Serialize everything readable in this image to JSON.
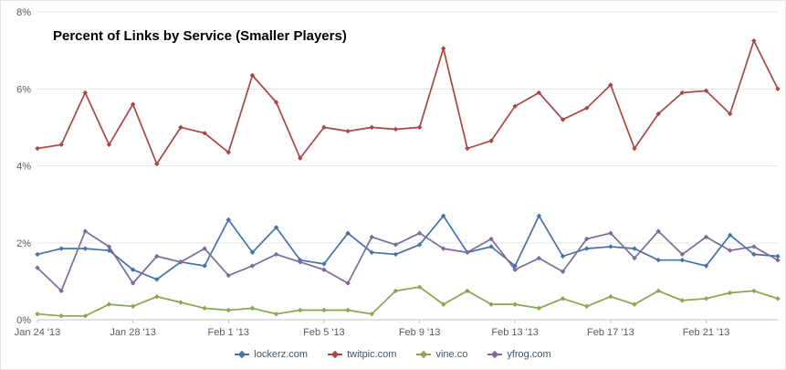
{
  "chart_data": {
    "type": "line",
    "title": "Percent of Links by Service (Smaller Players)",
    "xlabel": "",
    "ylabel": "",
    "ylim": [
      0,
      8
    ],
    "y_ticks": [
      0,
      2,
      4,
      6,
      8
    ],
    "y_tick_labels": [
      "0%",
      "2%",
      "4%",
      "6%",
      "8%"
    ],
    "grid": true,
    "legend_position": "bottom",
    "categories": [
      "Jan 24 '13",
      "Jan 25 '13",
      "Jan 26 '13",
      "Jan 27 '13",
      "Jan 28 '13",
      "Jan 29 '13",
      "Jan 30 '13",
      "Jan 31 '13",
      "Feb 1 '13",
      "Feb 2 '13",
      "Feb 3 '13",
      "Feb 4 '13",
      "Feb 5 '13",
      "Feb 6 '13",
      "Feb 7 '13",
      "Feb 8 '13",
      "Feb 9 '13",
      "Feb 10 '13",
      "Feb 11 '13",
      "Feb 12 '13",
      "Feb 13 '13",
      "Feb 14 '13",
      "Feb 15 '13",
      "Feb 16 '13",
      "Feb 17 '13",
      "Feb 18 '13",
      "Feb 19 '13",
      "Feb 20 '13",
      "Feb 21 '13",
      "Feb 22 '13",
      "Feb 23 '13",
      "Feb 24 '13"
    ],
    "x_tick_indices": [
      0,
      4,
      8,
      12,
      16,
      20,
      24,
      28
    ],
    "series": [
      {
        "name": "lockerz.com",
        "color": "#4572A7",
        "values": [
          1.7,
          1.85,
          1.85,
          1.8,
          1.3,
          1.05,
          1.5,
          1.4,
          2.6,
          1.75,
          2.4,
          1.55,
          1.45,
          2.25,
          1.75,
          1.7,
          1.95,
          2.7,
          1.75,
          1.9,
          1.4,
          2.7,
          1.65,
          1.85,
          1.9,
          1.85,
          1.55,
          1.55,
          1.4,
          2.2,
          1.7,
          1.65
        ]
      },
      {
        "name": "twitpic.com",
        "color": "#AA4643",
        "values": [
          4.45,
          4.55,
          5.9,
          4.55,
          5.6,
          4.05,
          5.0,
          4.85,
          4.35,
          6.35,
          5.65,
          4.2,
          5.0,
          4.9,
          5.0,
          4.95,
          5.0,
          7.05,
          4.45,
          4.65,
          5.55,
          5.9,
          5.2,
          5.5,
          6.1,
          4.45,
          5.35,
          5.9,
          5.95,
          5.35,
          7.25,
          6.0
        ]
      },
      {
        "name": "vine.co",
        "color": "#89A54E",
        "values": [
          0.15,
          0.1,
          0.1,
          0.4,
          0.35,
          0.6,
          0.45,
          0.3,
          0.25,
          0.3,
          0.15,
          0.25,
          0.25,
          0.25,
          0.15,
          0.75,
          0.85,
          0.4,
          0.75,
          0.4,
          0.4,
          0.3,
          0.55,
          0.35,
          0.6,
          0.4,
          0.75,
          0.5,
          0.55,
          0.7,
          0.75,
          0.55
        ]
      },
      {
        "name": "yfrog.com",
        "color": "#80699B",
        "values": [
          1.35,
          0.75,
          2.3,
          1.9,
          0.95,
          1.65,
          1.5,
          1.85,
          1.15,
          1.4,
          1.7,
          1.5,
          1.3,
          0.95,
          2.15,
          1.95,
          2.25,
          1.85,
          1.75,
          2.1,
          1.3,
          1.6,
          1.25,
          2.1,
          2.25,
          1.6,
          2.3,
          1.7,
          2.15,
          1.8,
          1.9,
          1.55
        ]
      }
    ]
  }
}
